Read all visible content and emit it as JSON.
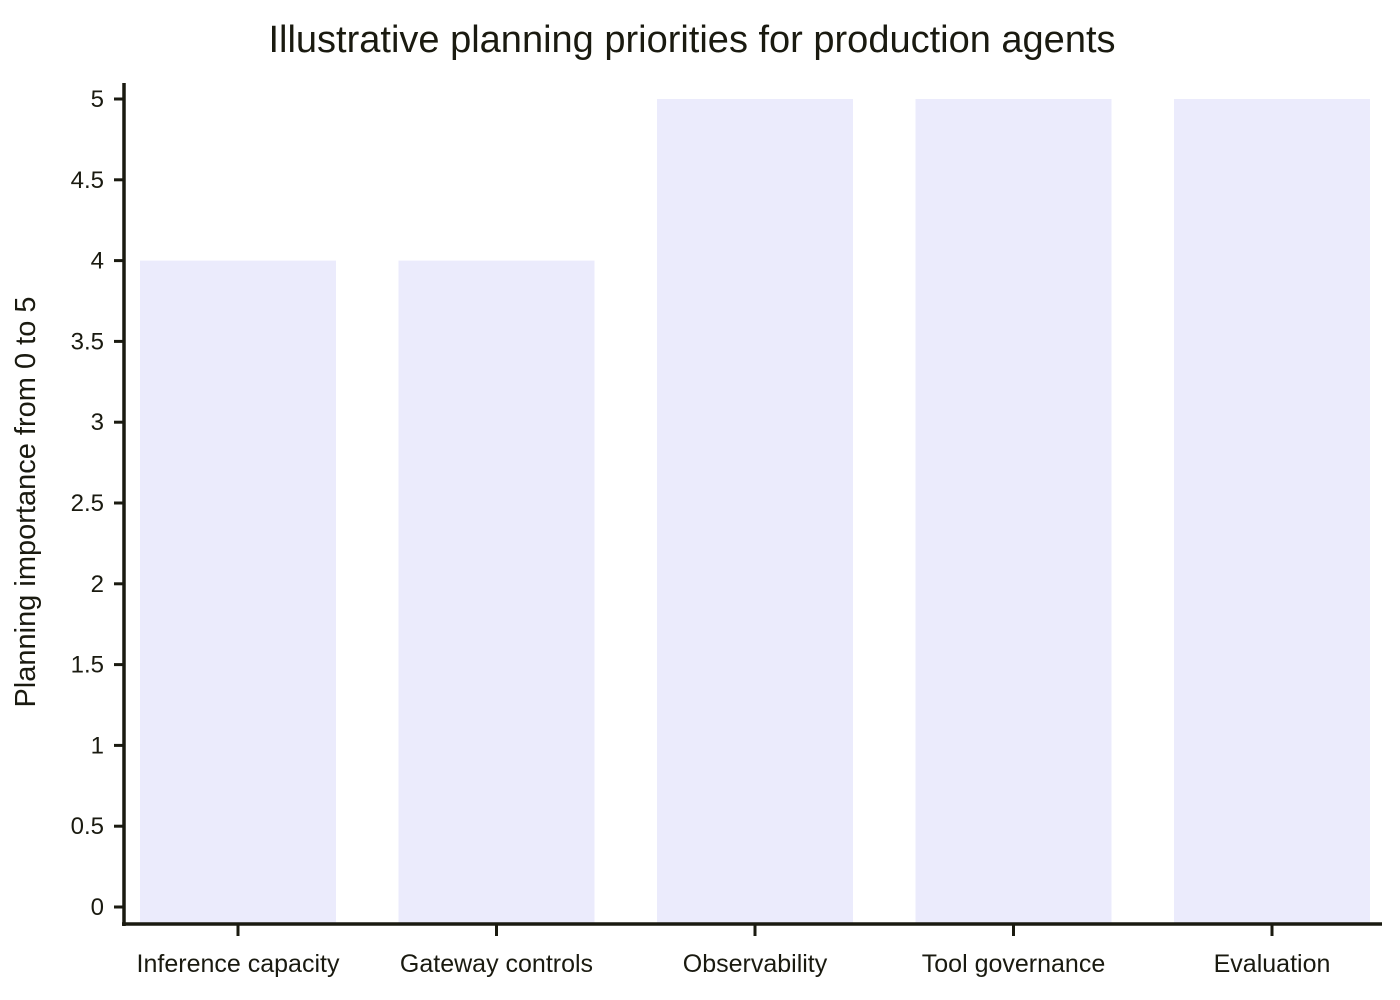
{
  "chart_data": {
    "type": "bar",
    "title": "Illustrative planning priorities for production agents",
    "xlabel": "",
    "ylabel": "Planning importance from 0 to 5",
    "categories": [
      "Inference capacity",
      "Gateway controls",
      "Observability",
      "Tool governance",
      "Evaluation"
    ],
    "values": [
      4,
      4,
      5,
      5,
      5
    ],
    "ylim": [
      0,
      5
    ],
    "yticks": [
      0,
      0.5,
      1,
      1.5,
      2,
      2.5,
      3,
      3.5,
      4,
      4.5,
      5
    ],
    "ytick_labels": [
      "0",
      "0.5",
      "1",
      "1.5",
      "2",
      "2.5",
      "3",
      "3.5",
      "4",
      "4.5",
      "5"
    ],
    "bar_color": "#ebebfc",
    "axis_color": "#1a1a10",
    "grid": false,
    "legend": "none"
  }
}
